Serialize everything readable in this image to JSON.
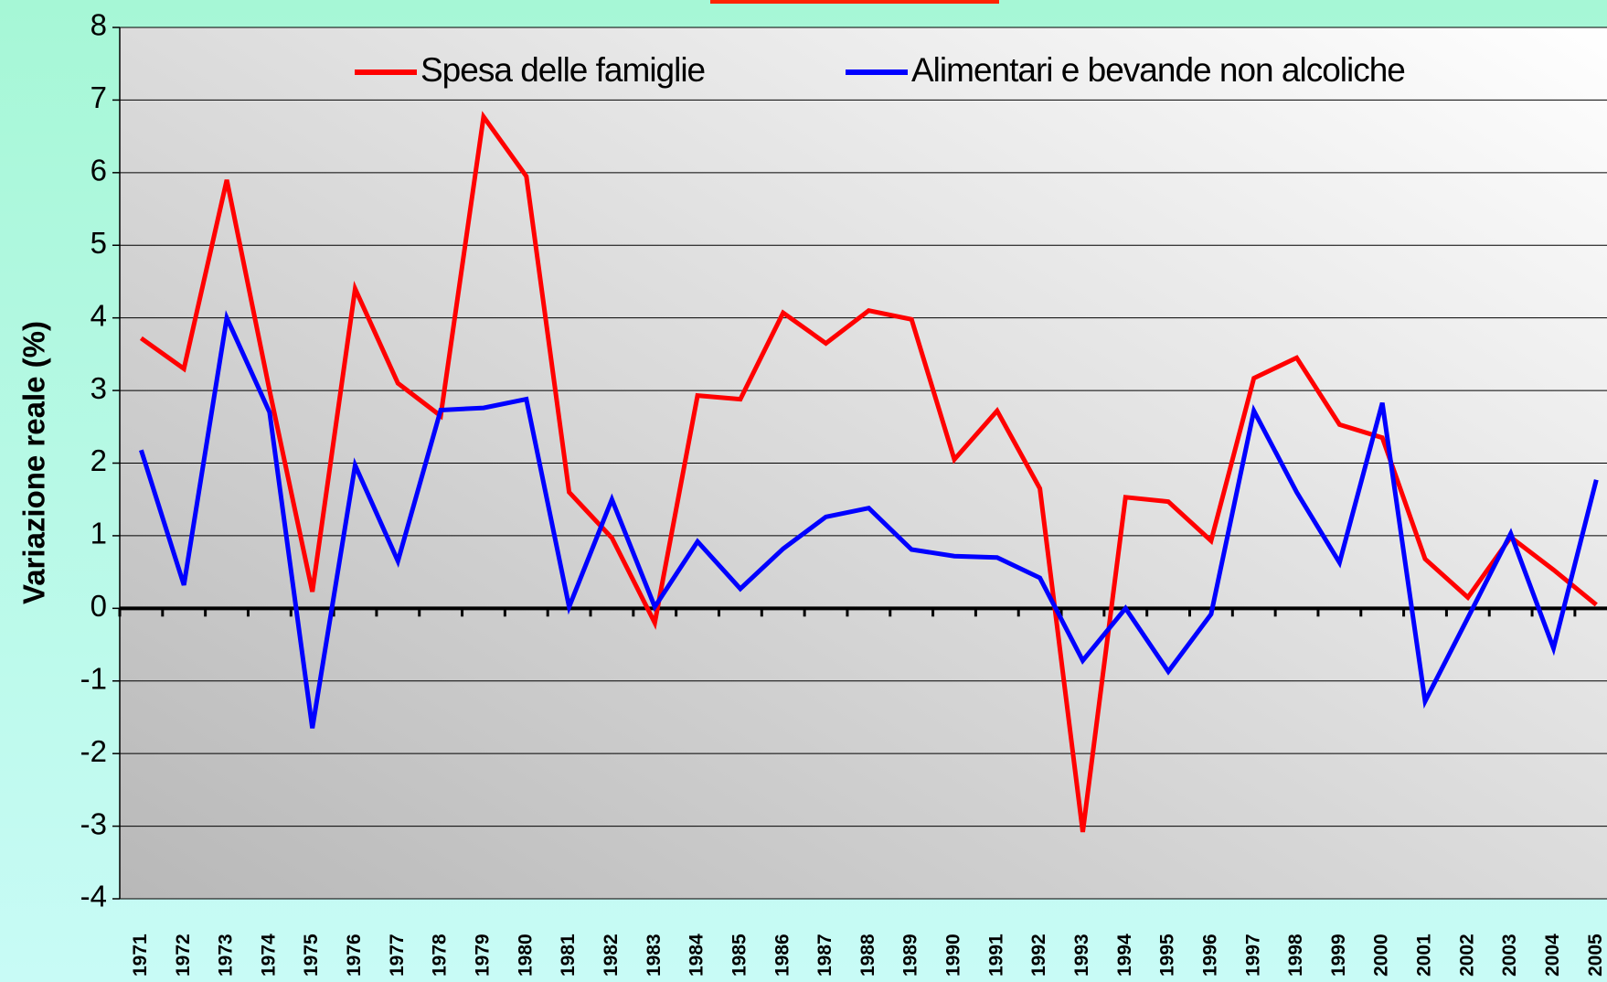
{
  "chart_data": {
    "type": "line",
    "y_label": "Variazione reale (%)",
    "categories": [
      "1971",
      "1972",
      "1973",
      "1974",
      "1975",
      "1976",
      "1977",
      "1978",
      "1979",
      "1980",
      "1981",
      "1982",
      "1983",
      "1984",
      "1985",
      "1986",
      "1987",
      "1988",
      "1989",
      "1990",
      "1991",
      "1992",
      "1993",
      "1994",
      "1995",
      "1996",
      "1997",
      "1998",
      "1999",
      "2000",
      "2001",
      "2002",
      "2003",
      "2004",
      "2005"
    ],
    "series": [
      {
        "name": "Spesa delle famiglie",
        "color": "#ff0000",
        "values": [
          3.72,
          3.3,
          5.9,
          3.0,
          0.23,
          4.4,
          3.1,
          2.65,
          6.77,
          5.95,
          1.6,
          0.97,
          -0.2,
          2.93,
          2.88,
          4.07,
          3.65,
          4.1,
          3.98,
          2.05,
          2.72,
          1.65,
          -3.08,
          1.53,
          1.47,
          0.93,
          3.17,
          3.45,
          2.53,
          2.35,
          0.68,
          0.15,
          0.98,
          0.53,
          0.05
        ]
      },
      {
        "name": "Alimentari e bevande non alcoliche",
        "color": "#0000ff",
        "values": [
          2.18,
          0.32,
          4.0,
          2.7,
          -1.65,
          1.97,
          0.65,
          2.73,
          2.76,
          2.88,
          0.02,
          1.5,
          0.02,
          0.92,
          0.27,
          0.82,
          1.26,
          1.38,
          0.81,
          0.72,
          0.7,
          0.42,
          -0.72,
          0.0,
          -0.87,
          -0.08,
          2.72,
          1.6,
          0.63,
          2.83,
          -1.28,
          -0.13,
          1.03,
          -0.55,
          1.77
        ]
      }
    ],
    "ylim": [
      -4,
      8
    ],
    "yticks": [
      -4,
      -3,
      -2,
      -1,
      0,
      1,
      2,
      3,
      4,
      5,
      6,
      7,
      8
    ],
    "grid": true,
    "legend": "top"
  }
}
